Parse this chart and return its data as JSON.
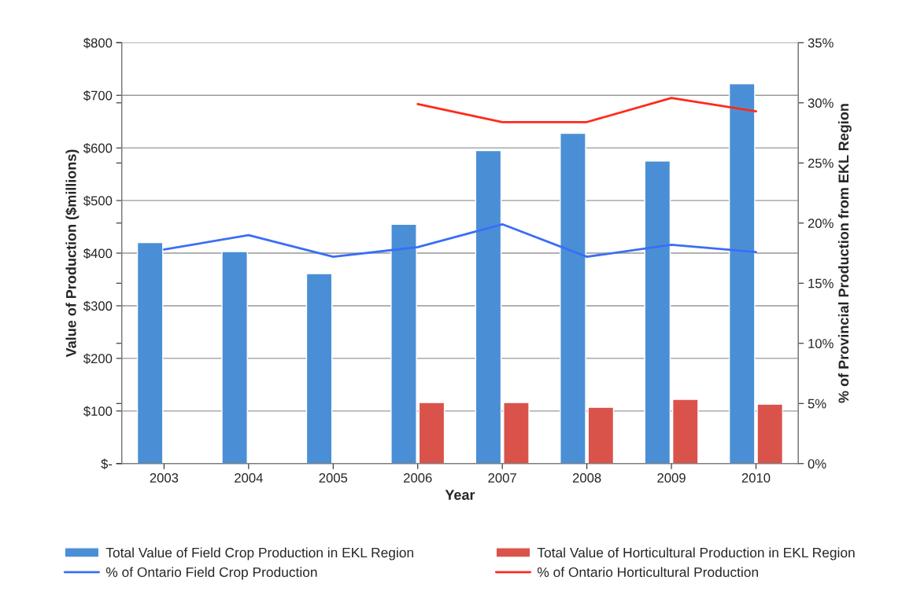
{
  "chart_data": {
    "type": "bar",
    "xlabel": "Year",
    "ylabel": "Value of Production ($millions)",
    "y2label": "% of Provincial Production from EKL Region",
    "categories": [
      "2003",
      "2004",
      "2005",
      "2006",
      "2007",
      "2008",
      "2009",
      "2010"
    ],
    "series": [
      {
        "name": "Total Value of Field Crop Production in EKL Region",
        "color": "#4a8fd6",
        "values": [
          420,
          403,
          361,
          455,
          595,
          628,
          575,
          722
        ]
      },
      {
        "name": "Total Value of Horticultural Production in EKL Region",
        "color": "#d9534a",
        "values": [
          null,
          null,
          null,
          116,
          116,
          107,
          122,
          113
        ]
      },
      {
        "name": "% of Ontario Field Crop Production",
        "type": "line",
        "axis": "y2",
        "color": "#3b6ef5",
        "values": [
          17.8,
          19.0,
          17.2,
          18.0,
          19.9,
          17.2,
          18.2,
          17.6
        ]
      },
      {
        "name": "% of Ontario Horticultural Production",
        "type": "line",
        "axis": "y2",
        "color": "#ff2a1a",
        "values": [
          null,
          null,
          null,
          29.9,
          28.4,
          28.4,
          30.4,
          29.3
        ]
      }
    ],
    "ylim": [
      0,
      800
    ],
    "yticks": [
      {
        "value": 0,
        "label": "$-"
      },
      {
        "value": 100,
        "label": "$100"
      },
      {
        "value": 200,
        "label": "$200"
      },
      {
        "value": 300,
        "label": "$300"
      },
      {
        "value": 400,
        "label": "$400"
      },
      {
        "value": 500,
        "label": "$500"
      },
      {
        "value": 600,
        "label": "$600"
      },
      {
        "value": 700,
        "label": "$700"
      },
      {
        "value": 800,
        "label": "$800"
      }
    ],
    "y2lim": [
      0,
      35
    ],
    "y2ticks": [
      {
        "value": 0,
        "label": "0%"
      },
      {
        "value": 5,
        "label": "5%"
      },
      {
        "value": 10,
        "label": "10%"
      },
      {
        "value": 15,
        "label": "15%"
      },
      {
        "value": 20,
        "label": "20%"
      },
      {
        "value": 25,
        "label": "25%"
      },
      {
        "value": 30,
        "label": "30%"
      },
      {
        "value": 35,
        "label": "35%"
      }
    ],
    "grid": "y",
    "legend": "bottom"
  }
}
